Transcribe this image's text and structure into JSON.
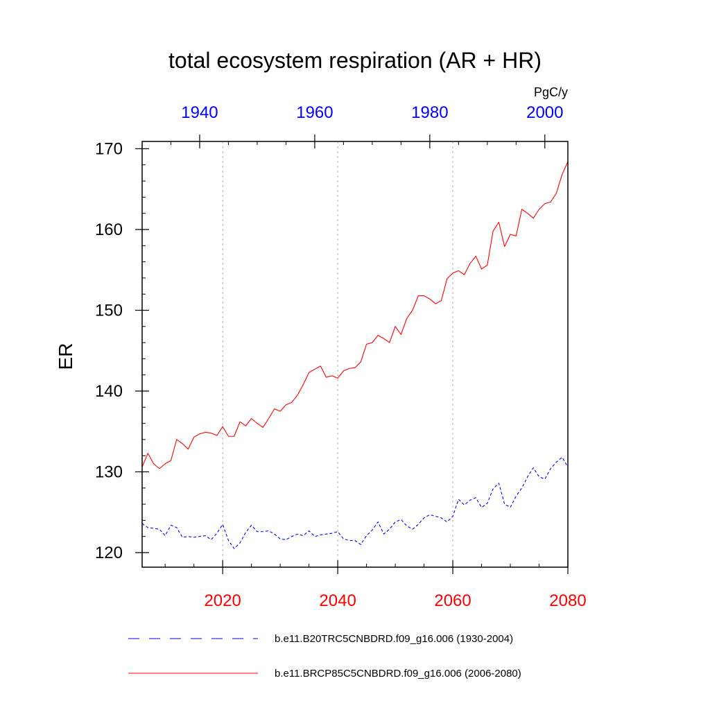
{
  "chart_data": {
    "type": "line",
    "title": "total ecosystem respiration (AR + HR)",
    "ylabel": "ER",
    "units": "PgC/y",
    "ylim": [
      118.2,
      170.9
    ],
    "y_ticks": [
      120,
      130,
      140,
      150,
      160,
      170
    ],
    "bottom_axis": {
      "range": [
        2006,
        2080
      ],
      "ticks": [
        2020,
        2040,
        2060,
        2080
      ],
      "color": "#ff0000"
    },
    "top_axis": {
      "range": [
        1930,
        2004
      ],
      "ticks": [
        1940,
        1960,
        1980,
        2000
      ],
      "color": "#0000ff"
    },
    "grid": "vertical dotted lines at bottom-axis ticks",
    "legend_position": "bottom",
    "series": [
      {
        "name": "b.e11.B20TRC5CNBDRD.f09_g16.006 (1930-2004)",
        "color": "#0000ff",
        "dash": "dashed",
        "x": [
          1930,
          1931,
          1932,
          1933,
          1934,
          1935,
          1936,
          1937,
          1938,
          1939,
          1940,
          1941,
          1942,
          1943,
          1944,
          1945,
          1946,
          1947,
          1948,
          1949,
          1950,
          1951,
          1952,
          1953,
          1954,
          1955,
          1956,
          1957,
          1958,
          1959,
          1960,
          1961,
          1962,
          1963,
          1964,
          1965,
          1966,
          1967,
          1968,
          1969,
          1970,
          1971,
          1972,
          1973,
          1974,
          1975,
          1976,
          1977,
          1978,
          1979,
          1980,
          1981,
          1982,
          1983,
          1984,
          1985,
          1986,
          1987,
          1988,
          1989,
          1990,
          1991,
          1992,
          1993,
          1994,
          1995,
          1996,
          1997,
          1998,
          1999,
          2000,
          2001,
          2002,
          2003,
          2004
        ],
        "values": [
          123.6,
          123.1,
          123.0,
          122.9,
          122.1,
          123.4,
          123.1,
          121.9,
          122.0,
          121.9,
          122.0,
          122.1,
          121.6,
          122.4,
          123.5,
          121.5,
          120.5,
          121.2,
          122.5,
          123.4,
          122.6,
          122.6,
          122.7,
          122.3,
          121.7,
          121.6,
          122.0,
          122.3,
          122.1,
          122.7,
          122.0,
          122.2,
          122.3,
          122.4,
          122.6,
          121.7,
          121.5,
          121.5,
          121.0,
          122.1,
          122.8,
          123.8,
          122.3,
          122.9,
          123.8,
          124.1,
          123.3,
          122.9,
          123.5,
          124.3,
          124.7,
          124.5,
          124.3,
          123.8,
          124.5,
          126.6,
          125.9,
          126.5,
          126.8,
          125.6,
          126.1,
          127.9,
          128.6,
          126.0,
          125.6,
          127.0,
          128.0,
          129.4,
          130.5,
          129.4,
          129.1,
          130.4,
          131.2,
          131.8,
          130.6
        ]
      },
      {
        "name": "b.e11.BRCP85C5CNBDRD.f09_g16.006 (2006-2080)",
        "color": "#ff0000",
        "dash": "solid",
        "x": [
          2006,
          2007,
          2008,
          2009,
          2010,
          2011,
          2012,
          2013,
          2014,
          2015,
          2016,
          2017,
          2018,
          2019,
          2020,
          2021,
          2022,
          2023,
          2024,
          2025,
          2026,
          2027,
          2028,
          2029,
          2030,
          2031,
          2032,
          2033,
          2034,
          2035,
          2036,
          2037,
          2038,
          2039,
          2040,
          2041,
          2042,
          2043,
          2044,
          2045,
          2046,
          2047,
          2048,
          2049,
          2050,
          2051,
          2052,
          2053,
          2054,
          2055,
          2056,
          2057,
          2058,
          2059,
          2060,
          2061,
          2062,
          2063,
          2064,
          2065,
          2066,
          2067,
          2068,
          2069,
          2070,
          2071,
          2072,
          2073,
          2074,
          2075,
          2076,
          2077,
          2078,
          2079,
          2080
        ],
        "values": [
          130.6,
          132.3,
          131.0,
          130.4,
          131.0,
          131.4,
          134.0,
          133.5,
          132.8,
          134.3,
          134.7,
          134.9,
          134.8,
          134.5,
          135.6,
          134.4,
          134.4,
          136.2,
          135.7,
          136.6,
          136.0,
          135.5,
          136.6,
          137.8,
          137.5,
          138.3,
          138.6,
          139.5,
          140.8,
          142.3,
          142.7,
          143.1,
          141.7,
          141.9,
          141.6,
          142.5,
          142.8,
          142.9,
          143.6,
          145.8,
          146.0,
          146.9,
          146.5,
          146.0,
          148.0,
          147.0,
          149.0,
          150.0,
          151.8,
          151.8,
          151.4,
          150.8,
          151.2,
          153.9,
          154.6,
          154.9,
          154.4,
          155.8,
          156.7,
          155.1,
          155.6,
          159.8,
          160.9,
          157.9,
          159.4,
          159.2,
          162.5,
          162.0,
          161.4,
          162.5,
          163.2,
          163.4,
          164.5,
          166.8,
          168.4
        ]
      }
    ]
  }
}
